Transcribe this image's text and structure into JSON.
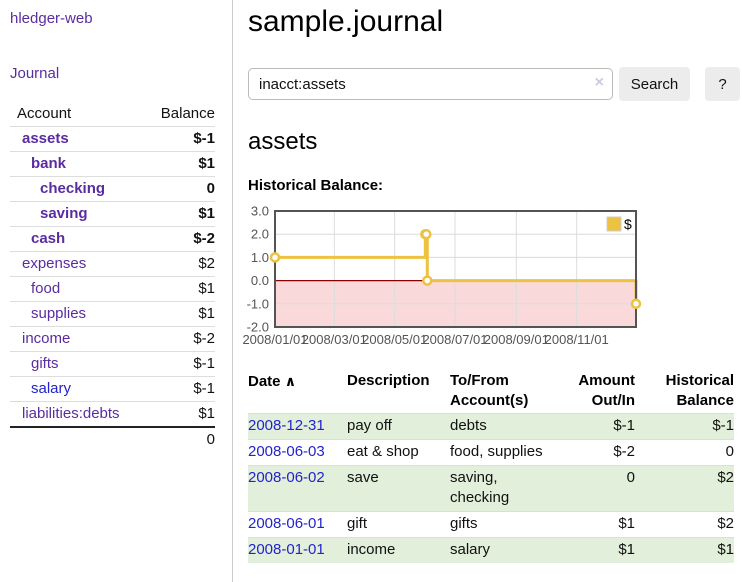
{
  "app": {
    "title": "hledger-web",
    "nav": {
      "journal": "Journal"
    }
  },
  "colors": {
    "link_purple": "#5a2ca0",
    "link_blue": "#2323cc",
    "negative": "#8f1f1f",
    "dim_negative": "#c28484",
    "row_green": "#e2efda",
    "series_gold": "#edc240"
  },
  "sidebar": {
    "columns": {
      "account": "Account",
      "balance": "Balance"
    },
    "accounts": [
      {
        "name": "assets",
        "balance": "$-1",
        "indent": 0,
        "bold": true,
        "amount_class": "neg"
      },
      {
        "name": "bank",
        "balance": "$1",
        "indent": 1,
        "bold": true,
        "amount_class": ""
      },
      {
        "name": "checking",
        "balance": "0",
        "indent": 2,
        "bold": true,
        "amount_class": ""
      },
      {
        "name": "saving",
        "balance": "$1",
        "indent": 2,
        "bold": true,
        "amount_class": ""
      },
      {
        "name": "cash",
        "balance": "$-2",
        "indent": 1,
        "bold": true,
        "amount_class": "neg"
      },
      {
        "name": "expenses",
        "balance": "$2",
        "indent": 0,
        "bold": false,
        "amount_class": ""
      },
      {
        "name": "food",
        "balance": "$1",
        "indent": 1,
        "bold": false,
        "amount_class": ""
      },
      {
        "name": "supplies",
        "balance": "$1",
        "indent": 1,
        "bold": false,
        "amount_class": ""
      },
      {
        "name": "income",
        "balance": "$-2",
        "indent": 0,
        "bold": false,
        "amount_class": "dimneg"
      },
      {
        "name": "gifts",
        "balance": "$-1",
        "indent": 1,
        "bold": false,
        "amount_class": "dimneg"
      },
      {
        "name": "salary",
        "balance": "$-1",
        "indent": 1,
        "bold": false,
        "amount_class": "dimneg",
        "link_color": "blue"
      },
      {
        "name": "liabilities:debts",
        "balance": "$1",
        "indent": 0,
        "bold": false,
        "amount_class": ""
      }
    ],
    "total": "0"
  },
  "main": {
    "title": "sample.journal",
    "search": {
      "value": "inacct:assets",
      "clear_icon": "×",
      "search_button": "Search",
      "help_button": "?"
    },
    "account_heading": "assets",
    "chart_label": "Historical Balance:"
  },
  "chart_data": {
    "type": "line",
    "step": true,
    "title": "Historical Balance",
    "x": [
      "2008-01-01",
      "2008-06-01",
      "2008-06-02",
      "2008-06-03",
      "2008-12-31"
    ],
    "series": [
      {
        "name": "$",
        "color": "#edc240",
        "values": [
          1,
          2,
          2,
          0,
          -1
        ]
      }
    ],
    "xlim": [
      "2008-01-01",
      "2008-12-31"
    ],
    "ylim": [
      -2,
      3
    ],
    "yticks": [
      "3.0",
      "2.0",
      "1.0",
      "0.0",
      "-1.0",
      "-2.0"
    ],
    "xticks": [
      {
        "date": "2008-01-01",
        "label": "2008/01/01"
      },
      {
        "date": "2008-03-01",
        "label": "2008/03/01"
      },
      {
        "date": "2008-05-01",
        "label": "2008/05/01"
      },
      {
        "date": "2008-07-01",
        "label": "2008/07/01"
      },
      {
        "date": "2008-09-01",
        "label": "2008/09/01"
      },
      {
        "date": "2008-11-01",
        "label": "2008/11/01"
      }
    ],
    "legend": {
      "label": "$",
      "position": "top-right"
    },
    "grid": true,
    "negative_zone_color": "#f9d9d9",
    "zero_line_color": "#8b0000"
  },
  "register": {
    "columns": [
      "Date",
      "Description",
      "To/From Account(s)",
      "Amount Out/In",
      "Historical Balance"
    ],
    "sort_arrow": "∧",
    "rows": [
      {
        "date": "2008-12-31",
        "description": "pay off",
        "accounts": "debts",
        "amount": "$-1",
        "balance": "$-1"
      },
      {
        "date": "2008-06-03",
        "description": "eat & shop",
        "accounts": "food, supplies",
        "amount": "$-2",
        "balance": "0"
      },
      {
        "date": "2008-06-02",
        "description": "save",
        "accounts": "saving, checking",
        "amount": "0",
        "balance": "$2"
      },
      {
        "date": "2008-06-01",
        "description": "gift",
        "accounts": "gifts",
        "amount": "$1",
        "balance": "$2"
      },
      {
        "date": "2008-01-01",
        "description": "income",
        "accounts": "salary",
        "amount": "$1",
        "balance": "$1"
      }
    ]
  }
}
